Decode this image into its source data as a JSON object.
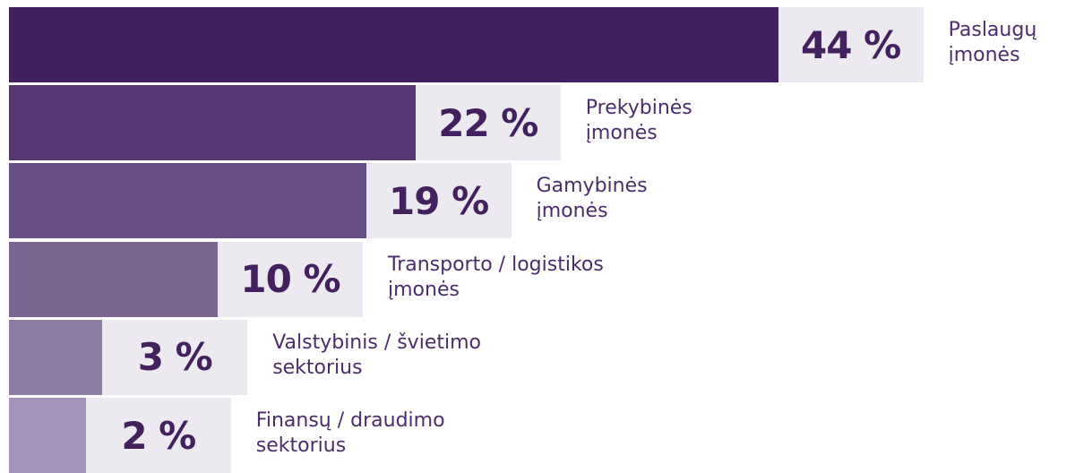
{
  "chart_data": {
    "type": "bar",
    "orientation": "horizontal",
    "categories": [
      "Paslaugų\nįmonės",
      "Prekybinės\nįmonės",
      "Gamybinės\nįmonės",
      "Transporto / logistikos\nįmonės",
      "Valstybinis / švietimo\nsektorius",
      "Finansų / draudimo\nsektorius"
    ],
    "values": [
      44,
      22,
      19,
      10,
      3,
      2
    ],
    "value_labels": [
      "44 %",
      "22 %",
      "19 %",
      "10 %",
      "3 %",
      "2 %"
    ],
    "colors": [
      "#43215f",
      "#573872",
      "#684f83",
      "#7b6792",
      "#8e7ea4",
      "#a394b8"
    ]
  }
}
